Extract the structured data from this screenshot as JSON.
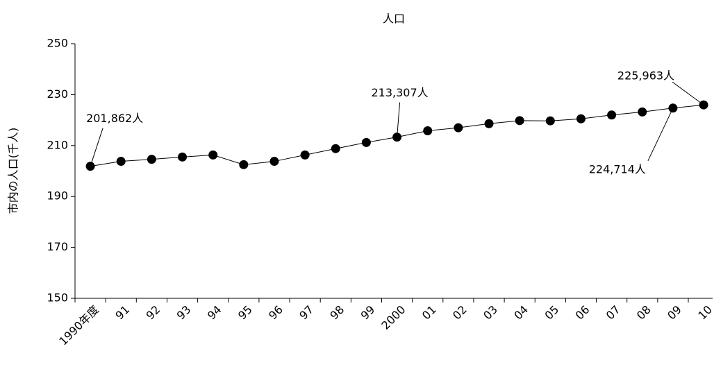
{
  "chart_data": {
    "type": "line",
    "title": "人口",
    "y_label": "市内の人口(千人)",
    "categories": [
      "1990年度",
      "91",
      "92",
      "93",
      "94",
      "95",
      "96",
      "97",
      "98",
      "99",
      "2000",
      "01",
      "02",
      "03",
      "04",
      "05",
      "06",
      "07",
      "08",
      "09",
      "10"
    ],
    "values": [
      201.862,
      203.8,
      204.6,
      205.5,
      206.3,
      202.5,
      203.8,
      206.3,
      208.8,
      211.2,
      213.307,
      215.8,
      217,
      218.6,
      219.8,
      219.7,
      220.5,
      222,
      223.2,
      224.714,
      225.963
    ],
    "value_labels": [
      "201,862人",
      null,
      null,
      null,
      null,
      null,
      null,
      null,
      null,
      null,
      "213,307人",
      null,
      null,
      null,
      null,
      null,
      null,
      null,
      null,
      "224,714人",
      "225,963人"
    ],
    "color": "#000000",
    "ylim": [
      150,
      250
    ],
    "yticks": [
      150,
      170,
      190,
      210,
      230,
      250
    ]
  }
}
